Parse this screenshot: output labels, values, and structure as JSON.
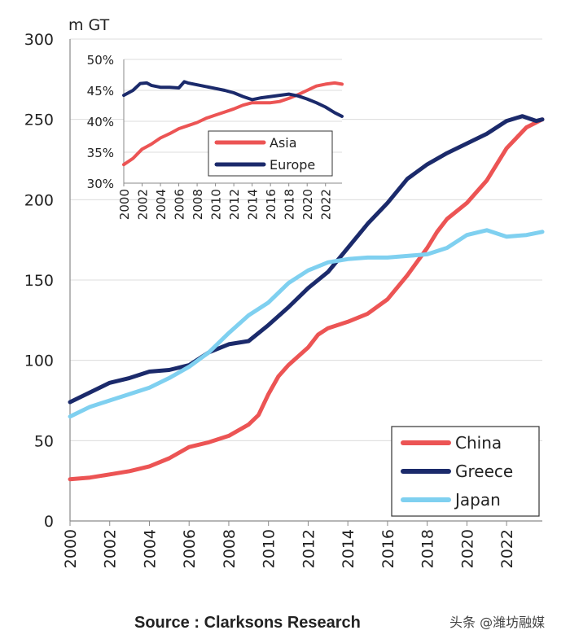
{
  "source_label": "Source : Clarksons Research",
  "watermark": "头条 @潍坊融媒",
  "colors": {
    "china": "#ec5454",
    "greece": "#1b2a6b",
    "japan": "#7fd0f0",
    "grid": "#dcdcdc"
  },
  "chart_data": [
    {
      "type": "line",
      "ylabel": "m GT",
      "xlim": [
        2000,
        2023.8
      ],
      "ylim": [
        0,
        300
      ],
      "yticks": [
        0,
        50,
        100,
        150,
        200,
        250,
        300
      ],
      "xticks": [
        2000,
        2002,
        2004,
        2006,
        2008,
        2010,
        2012,
        2014,
        2016,
        2018,
        2020,
        2022
      ],
      "grid": true,
      "legend": "bottom-right",
      "series": [
        {
          "name": "China",
          "color": "#ec5454",
          "x": [
            2000,
            2001,
            2002,
            2003,
            2004,
            2005,
            2006,
            2007,
            2008,
            2009,
            2009.5,
            2010,
            2010.5,
            2011,
            2012,
            2012.5,
            2013,
            2014,
            2015,
            2016,
            2017,
            2018,
            2018.5,
            2019,
            2020,
            2021,
            2022,
            2023,
            2023.8
          ],
          "y": [
            26,
            27,
            29,
            31,
            34,
            39,
            46,
            49,
            53,
            60,
            66,
            79,
            90,
            97,
            108,
            116,
            120,
            124,
            129,
            138,
            153,
            170,
            180,
            188,
            198,
            212,
            232,
            245,
            250
          ]
        },
        {
          "name": "Greece",
          "color": "#1b2a6b",
          "x": [
            2000,
            2001,
            2002,
            2003,
            2004,
            2005,
            2006,
            2007,
            2008,
            2009,
            2010,
            2011,
            2012,
            2013,
            2014,
            2015,
            2016,
            2017,
            2018,
            2019,
            2020,
            2021,
            2022,
            2022.8,
            2023.5,
            2023.8
          ],
          "y": [
            74,
            80,
            86,
            89,
            93,
            94,
            97,
            105,
            110,
            112,
            122,
            133,
            145,
            155,
            170,
            185,
            198,
            213,
            222,
            229,
            235,
            241,
            249,
            252,
            249,
            250
          ]
        },
        {
          "name": "Japan",
          "color": "#7fd0f0",
          "x": [
            2000,
            2001,
            2002,
            2003,
            2004,
            2005,
            2006,
            2007,
            2008,
            2009,
            2010,
            2011,
            2012,
            2013,
            2014,
            2015,
            2016,
            2017,
            2018,
            2019,
            2020,
            2021,
            2022,
            2023,
            2023.8
          ],
          "y": [
            65,
            71,
            75,
            79,
            83,
            89,
            96,
            105,
            117,
            128,
            136,
            148,
            156,
            161,
            163,
            164,
            164,
            165,
            166,
            170,
            178,
            181,
            177,
            178,
            180
          ]
        }
      ]
    },
    {
      "type": "line",
      "xlim": [
        2000,
        2023.8
      ],
      "ylim": [
        30,
        50
      ],
      "yticks": [
        "30%",
        "35%",
        "40%",
        "45%",
        "50%"
      ],
      "ytick_values": [
        30,
        35,
        40,
        45,
        50
      ],
      "xticks": [
        2000,
        2002,
        2004,
        2006,
        2008,
        2010,
        2012,
        2014,
        2016,
        2018,
        2020,
        2022
      ],
      "grid": true,
      "legend": "right",
      "series": [
        {
          "name": "Asia",
          "color": "#ec5454",
          "x": [
            2000,
            2001,
            2002,
            2003,
            2004,
            2005,
            2006,
            2007,
            2008,
            2009,
            2010,
            2011,
            2012,
            2013,
            2014,
            2015,
            2016,
            2017,
            2018,
            2019,
            2020,
            2021,
            2022,
            2023,
            2023.8
          ],
          "y": [
            33,
            34,
            35.5,
            36.3,
            37.3,
            38,
            38.8,
            39.3,
            39.8,
            40.5,
            41,
            41.5,
            42,
            42.6,
            43,
            43,
            43,
            43.2,
            43.7,
            44.3,
            45,
            45.7,
            46,
            46.2,
            46
          ]
        },
        {
          "name": "Europe",
          "color": "#1b2a6b",
          "x": [
            2000,
            2001,
            2001.8,
            2002.5,
            2003,
            2004,
            2005,
            2006,
            2006.6,
            2007,
            2008,
            2009,
            2010,
            2011,
            2012,
            2013,
            2014,
            2015,
            2016,
            2017,
            2018,
            2019,
            2020,
            2021,
            2022,
            2023,
            2023.8
          ],
          "y": [
            44.2,
            45,
            46.1,
            46.2,
            45.8,
            45.5,
            45.5,
            45.4,
            46.4,
            46.2,
            45.9,
            45.6,
            45.3,
            45,
            44.6,
            44,
            43.5,
            43.8,
            44,
            44.2,
            44.4,
            44.1,
            43.6,
            43,
            42.3,
            41.4,
            40.8
          ]
        }
      ]
    }
  ]
}
